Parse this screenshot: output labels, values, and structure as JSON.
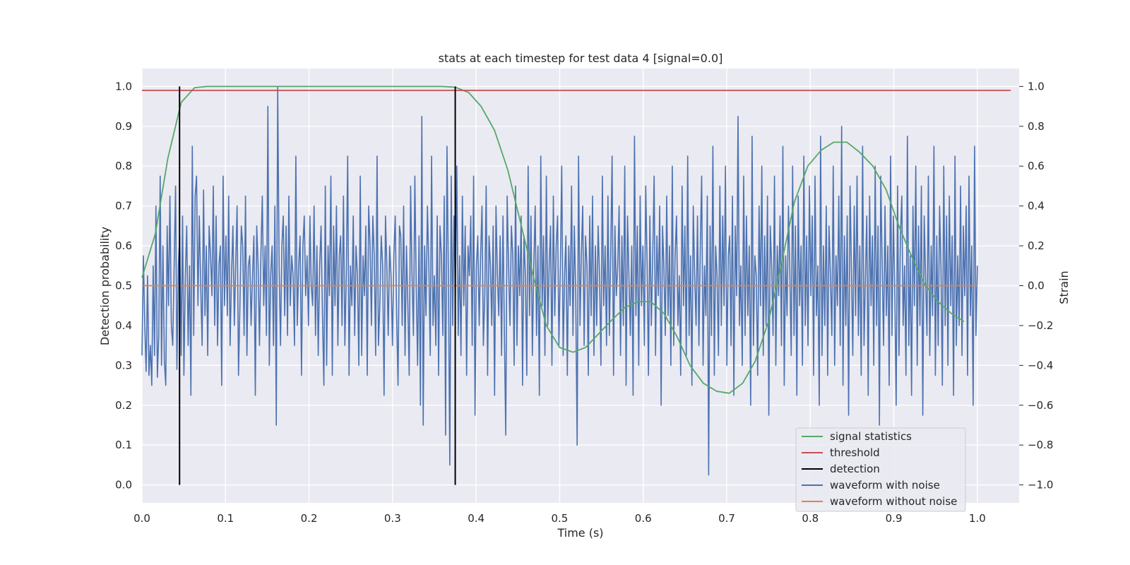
{
  "chart_data": {
    "type": "line",
    "title": "stats at each timestep for test data 4 [signal=0.0]",
    "xlabel": "Time (s)",
    "ylabel": "Detection probability",
    "y2label": "Strain",
    "xlim": [
      0.0,
      1.05
    ],
    "ylim": [
      -0.045,
      1.045
    ],
    "y2lim": [
      -1.09,
      1.09
    ],
    "x_ticks": [
      0.0,
      0.1,
      0.2,
      0.3,
      0.4,
      0.5,
      0.6,
      0.7,
      0.8,
      0.9,
      1.0
    ],
    "x_tick_labels": [
      "0.0",
      "0.1",
      "0.2",
      "0.3",
      "0.4",
      "0.5",
      "0.6",
      "0.7",
      "0.8",
      "0.9",
      "1.0"
    ],
    "y_ticks": [
      0.0,
      0.1,
      0.2,
      0.3,
      0.4,
      0.5,
      0.6,
      0.7,
      0.8,
      0.9,
      1.0
    ],
    "y_tick_labels": [
      "0.0",
      "0.1",
      "0.2",
      "0.3",
      "0.4",
      "0.5",
      "0.6",
      "0.7",
      "0.8",
      "0.9",
      "1.0"
    ],
    "y2_ticks": [
      1.0,
      0.8,
      0.6,
      0.4,
      0.2,
      0.0,
      -0.2,
      -0.4,
      -0.6,
      -0.8,
      -1.0
    ],
    "y2_tick_labels": [
      "1.0",
      "0.8",
      "0.6",
      "0.4",
      "0.2",
      "0.0",
      "−0.2",
      "−0.4",
      "−0.6",
      "−0.8",
      "−1.0"
    ],
    "grid": true,
    "legend_position": "lower-right",
    "colors": {
      "background": "#eaeaf2",
      "grid": "#ffffff",
      "signal": "#55a868",
      "threshold": "#c44e52",
      "detection": "#000000",
      "noisy": "#4c72b0",
      "clean": "#dd8452"
    },
    "series": [
      {
        "name": "signal statistics",
        "axis": "left",
        "x": [
          0.0,
          0.016,
          0.031,
          0.047,
          0.063,
          0.078,
          0.094,
          0.109,
          0.125,
          0.141,
          0.156,
          0.172,
          0.188,
          0.203,
          0.219,
          0.234,
          0.25,
          0.266,
          0.281,
          0.297,
          0.313,
          0.328,
          0.344,
          0.359,
          0.375,
          0.391,
          0.406,
          0.422,
          0.438,
          0.453,
          0.469,
          0.484,
          0.5,
          0.516,
          0.531,
          0.547,
          0.563,
          0.578,
          0.594,
          0.609,
          0.625,
          0.641,
          0.656,
          0.672,
          0.688,
          0.703,
          0.719,
          0.734,
          0.75,
          0.766,
          0.781,
          0.797,
          0.813,
          0.828,
          0.844,
          0.859,
          0.875,
          0.891,
          0.906,
          0.922,
          0.938,
          0.953,
          0.969,
          0.984
        ],
        "values": [
          0.52,
          0.63,
          0.82,
          0.96,
          0.997,
          1.0,
          1.0,
          1.0,
          1.0,
          1.0,
          1.0,
          1.0,
          1.0,
          1.0,
          1.0,
          1.0,
          1.0,
          1.0,
          1.0,
          1.0,
          1.0,
          1.0,
          1.0,
          1.0,
          0.998,
          0.985,
          0.95,
          0.89,
          0.79,
          0.66,
          0.52,
          0.4,
          0.345,
          0.333,
          0.345,
          0.38,
          0.415,
          0.445,
          0.46,
          0.46,
          0.43,
          0.37,
          0.3,
          0.255,
          0.235,
          0.23,
          0.255,
          0.31,
          0.41,
          0.56,
          0.71,
          0.8,
          0.84,
          0.86,
          0.86,
          0.835,
          0.8,
          0.74,
          0.65,
          0.57,
          0.5,
          0.46,
          0.43,
          0.41
        ]
      },
      {
        "name": "threshold",
        "axis": "left",
        "x": [
          0.0,
          1.04
        ],
        "values": [
          0.99,
          0.99
        ]
      },
      {
        "name": "detection",
        "axis": "left",
        "x": [
          0.045,
          0.375
        ],
        "values": [
          [
            0.0,
            1.0
          ],
          [
            0.0,
            1.0
          ]
        ]
      },
      {
        "name": "waveform with noise",
        "axis": "right",
        "x_range": [
          0.0,
          1.0
        ],
        "values": [
          -0.35,
          0.15,
          -0.2,
          -0.43,
          0.05,
          -0.45,
          -0.3,
          -0.5,
          0.1,
          -0.35,
          0.4,
          -0.46,
          -0.25,
          0.55,
          -0.4,
          0.2,
          -0.38,
          -0.5,
          0.3,
          -0.1,
          0.45,
          -0.2,
          -0.3,
          0.1,
          0.5,
          -0.42,
          0.1,
          0.25,
          -0.35,
          0.35,
          -0.45,
          0.05,
          0.3,
          -0.3,
          0.1,
          -0.55,
          0.7,
          -0.25,
          0.45,
          0.55,
          -0.1,
          0.35,
          0.0,
          -0.3,
          0.48,
          -0.15,
          0.2,
          -0.35,
          0.3,
          0.15,
          -0.05,
          0.5,
          -0.2,
          0.35,
          -0.3,
          0.1,
          0.2,
          -0.5,
          0.55,
          -0.1,
          0.25,
          -0.15,
          0.45,
          -0.3,
          0.05,
          0.3,
          -0.2,
          0.1,
          0.4,
          -0.45,
          -0.1,
          0.3,
          0.2,
          -0.25,
          0.45,
          -0.35,
          0.1,
          0.15,
          -0.2,
          0.05,
          0.25,
          -0.55,
          0.3,
          0.1,
          -0.3,
          0.15,
          0.45,
          -0.1,
          0.2,
          -0.25,
          0.9,
          -0.4,
          0.05,
          0.2,
          -0.3,
          0.4,
          -0.7,
          1.0,
          0.1,
          -0.3,
          0.2,
          0.35,
          -0.15,
          0.3,
          -0.25,
          0.45,
          -0.1,
          0.15,
          0.05,
          -0.3,
          0.65,
          -0.2,
          0.1,
          0.25,
          -0.45,
          0.2,
          0.35,
          -0.05,
          0.15,
          -0.2,
          0.35,
          0.0,
          -0.1,
          0.4,
          -0.25,
          0.2,
          -0.35,
          0.1,
          0.3,
          -0.15,
          -0.5,
          0.5,
          -0.4,
          0.2,
          -0.05,
          0.55,
          -0.45,
          0.3,
          -0.1,
          0.4,
          -0.3,
          0.15,
          0.25,
          -0.2,
          0.45,
          -0.3,
          0.05,
          0.65,
          -0.45,
          0.1,
          -0.1,
          0.35,
          -0.25,
          0.2,
          0.05,
          -0.4,
          0.55,
          -0.35,
          0.15,
          -0.05,
          0.3,
          -0.45,
          0.4,
          0.2,
          -0.2,
          0.35,
          0.15,
          -0.35,
          0.65,
          -0.3,
          -0.1,
          0.25,
          0.1,
          -0.55,
          0.35,
          0.1,
          -0.25,
          0.2,
          0.05,
          -0.3,
          0.15,
          0.35,
          -0.15,
          -0.5,
          0.3,
          0.25,
          -0.2,
          0.4,
          -0.35,
          0.2,
          -0.1,
          -0.45,
          0.5,
          0.05,
          -0.25,
          0.55,
          0.0,
          -0.4,
          0.25,
          -0.6,
          0.85,
          -0.7,
          0.2,
          -0.15,
          0.4,
          0.1,
          -0.35,
          0.65,
          -0.2,
          0.05,
          -0.3,
          0.35,
          -0.45,
          0.3,
          0.15,
          -0.25,
          0.45,
          -0.75,
          0.7,
          0.05,
          -0.9,
          0.55,
          -0.2,
          0.35,
          -0.05,
          0.6,
          -0.25,
          0.15,
          -0.35,
          0.45,
          -0.1,
          0.3,
          -0.45,
          0.2,
          0.05,
          0.35,
          -0.3,
          0.55,
          -0.65,
          0.1,
          0.25,
          -0.2,
          0.15,
          0.4,
          -0.3,
          -0.05,
          0.5,
          -0.45,
          0.25,
          0.1,
          -0.2,
          0.3,
          -0.55,
          0.4,
          0.05,
          -0.15,
          0.25,
          -0.35,
          0.35,
          -0.25,
          -0.75,
          0.45,
          0.1,
          -0.2,
          0.3,
          0.15,
          -0.4,
          0.5,
          -0.3,
          0.2,
          -0.05,
          0.35,
          -0.5,
          0.25,
          0.05,
          -0.45,
          0.6,
          -0.15,
          0.35,
          -0.35,
          0.1,
          0.4,
          -0.25,
          0.2,
          -0.55,
          0.65,
          -0.1,
          0.25,
          -0.35,
          0.55,
          -0.2,
          0.1,
          0.3,
          -0.4,
          0.45,
          -0.15,
          0.2,
          0.35,
          -0.3,
          0.1,
          0.6,
          -0.35,
          0.05,
          0.25,
          -0.45,
          0.2,
          -0.1,
          0.5,
          -0.25,
          0.3,
          -0.05,
          -0.8,
          0.65,
          -0.2,
          0.15,
          0.4,
          -0.3,
          0.25,
          0.1,
          -0.45,
          0.35,
          -0.15,
          0.45,
          -0.35,
          0.2,
          -0.2,
          0.3,
          0.05,
          -0.4,
          0.55,
          -0.1,
          0.2,
          -0.3,
          0.45,
          -0.25,
          0.15,
          0.65,
          -0.45,
          0.3,
          -0.05,
          0.1,
          0.4,
          -0.35,
          0.25,
          -0.2,
          0.6,
          -0.5,
          0.35,
          0.05,
          -0.25,
          0.2,
          -0.55,
          0.75,
          -0.15,
          0.3,
          -0.4,
          0.45,
          -0.1,
          0.2,
          -0.3,
          0.5,
          0.1,
          -0.45,
          0.35,
          -0.2,
          0.15,
          0.55,
          -0.35,
          0.25,
          -0.05,
          0.4,
          -0.6,
          0.3,
          0.1,
          -0.25,
          0.45,
          -0.15,
          0.2,
          -0.4,
          0.6,
          -0.3,
          0.15,
          0.35,
          -0.2,
          0.05,
          -0.45,
          0.5,
          -0.1,
          0.3,
          -0.35,
          0.65,
          -0.25,
          0.15,
          -0.5,
          0.4,
          0.05,
          -0.2,
          0.35,
          -0.3,
          0.2,
          0.55,
          -0.4,
          0.1,
          -0.15,
          0.45,
          -0.95,
          0.3,
          -0.25,
          0.7,
          -0.45,
          0.2,
          0.05,
          -0.35,
          0.5,
          -0.2,
          0.35,
          -0.1,
          0.6,
          -0.4,
          0.15,
          0.25,
          -0.3,
          0.45,
          -0.55,
          0.3,
          -0.05,
          0.85,
          -0.2,
          0.1,
          -0.4,
          0.55,
          -0.25,
          0.35,
          -0.15,
          0.2,
          -0.6,
          0.75,
          -0.3,
          0.15,
          0.05,
          -0.45,
          0.4,
          -0.1,
          0.6,
          -0.35,
          0.25,
          -0.2,
          0.45,
          -0.65,
          0.3,
          0.1,
          -0.25,
          0.55,
          -0.4,
          0.2,
          -0.05,
          0.35,
          -0.3,
          0.7,
          -0.5,
          0.15,
          -0.15,
          0.4,
          0.05,
          -0.35,
          0.6,
          -0.25,
          0.3,
          -0.55,
          0.45,
          -0.1,
          0.2,
          -0.4,
          0.65,
          -0.2,
          0.25,
          -0.3,
          0.5,
          -0.05,
          0.35,
          -0.45,
          0.55,
          -0.15,
          0.1,
          -0.6,
          0.75,
          -0.35,
          0.2,
          -0.2,
          0.4,
          -0.45,
          0.3,
          0.05,
          -0.25,
          0.6,
          -0.4,
          0.15,
          -0.1,
          0.45,
          -0.3,
          0.8,
          -0.5,
          0.25,
          -0.2,
          0.35,
          -0.65,
          0.5,
          0.1,
          -0.35,
          0.4,
          -0.15,
          0.55,
          -0.25,
          0.2,
          -0.45,
          0.7,
          -0.3,
          0.05,
          0.35,
          -0.55,
          0.45,
          -0.1,
          0.25,
          -0.4,
          0.6,
          -0.2,
          0.3,
          -0.7,
          0.55,
          0.1,
          -0.3,
          0.4,
          -0.15,
          0.2,
          -0.5,
          0.65,
          -0.25,
          0.35,
          -0.05,
          -0.6,
          0.5,
          -0.35,
          0.25,
          0.45,
          -0.2,
          0.1,
          -0.45,
          0.75,
          -0.3,
          0.15,
          -0.55,
          0.4,
          -0.1,
          0.6,
          -0.4,
          0.3,
          -0.2,
          0.5,
          -0.65,
          0.35,
          0.05,
          -0.25,
          0.55,
          -0.35,
          0.2,
          -0.15,
          0.7,
          -0.45,
          0.25,
          -0.3,
          0.4,
          0.1,
          -0.5,
          0.6,
          -0.2,
          0.35,
          -0.4,
          0.45,
          -0.1,
          0.25,
          -0.55,
          0.65,
          -0.3,
          0.15,
          -0.2,
          0.5,
          -0.35,
          0.3,
          -0.05,
          0.4,
          -0.45,
          0.55,
          -0.15,
          0.2,
          -0.6,
          0.7,
          -0.25,
          0.1
        ],
        "note_hidden": ""
      },
      {
        "name": "waveform without noise",
        "axis": "right",
        "x": [
          0.0,
          1.0
        ],
        "values": [
          0.0,
          0.0
        ]
      }
    ],
    "legend": [
      "signal statistics",
      "threshold",
      "detection",
      "waveform with noise",
      "waveform without noise"
    ]
  }
}
